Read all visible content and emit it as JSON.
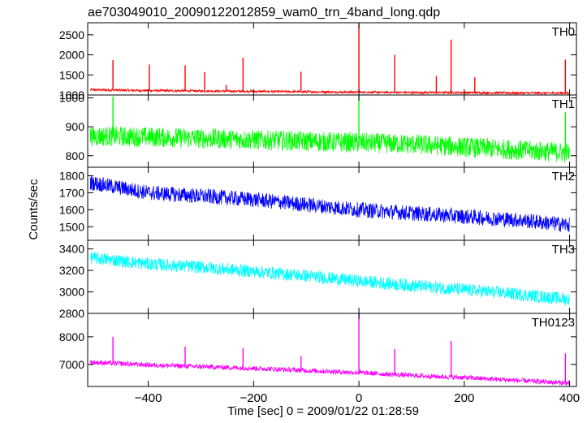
{
  "title": "ae703049010_20090122012859_wam0_trn_4band_long.qdp",
  "ylabel": "Counts/sec",
  "xlabel": "Time [sec] 0 = 2009/01/22 01:28:59",
  "x_ticks": [
    -400,
    -200,
    0,
    200,
    400
  ],
  "x_tick_labels": [
    "−400",
    "−200",
    "0",
    "200",
    "400"
  ],
  "chart_data": [
    {
      "type": "line",
      "label": "TH0",
      "color": "#ff0000",
      "xlim": [
        -515,
        413
      ],
      "ylim": [
        1000,
        2800
      ],
      "ticks": [
        1000,
        1500,
        2000,
        2500
      ],
      "x": [
        -510,
        -400,
        -300,
        -200,
        -100,
        0,
        100,
        200,
        300,
        400
      ],
      "y": [
        1130,
        1110,
        1100,
        1090,
        1080,
        1070,
        1060,
        1060,
        1050,
        1050
      ],
      "noise": 30,
      "spikes": [
        {
          "x": -467,
          "y": 1870
        },
        {
          "x": -398,
          "y": 1760
        },
        {
          "x": -330,
          "y": 1740
        },
        {
          "x": -293,
          "y": 1570
        },
        {
          "x": -252,
          "y": 1250
        },
        {
          "x": -220,
          "y": 1930
        },
        {
          "x": -110,
          "y": 1580
        },
        {
          "x": 0,
          "y": 2780
        },
        {
          "x": 68,
          "y": 2000
        },
        {
          "x": 147,
          "y": 1470
        },
        {
          "x": 175,
          "y": 2380
        },
        {
          "x": 220,
          "y": 1440
        },
        {
          "x": 392,
          "y": 1880
        }
      ]
    },
    {
      "type": "line",
      "label": "TH1",
      "color": "#00ff00",
      "xlim": [
        -515,
        413
      ],
      "ylim": [
        760,
        1010
      ],
      "ticks": [
        800,
        900,
        1000
      ],
      "x": [
        -510,
        -400,
        -300,
        -200,
        -100,
        0,
        100,
        200,
        300,
        400
      ],
      "y": [
        868,
        865,
        860,
        855,
        850,
        845,
        840,
        830,
        820,
        810
      ],
      "noise": 35,
      "spikes": [
        {
          "x": -467,
          "y": 1005
        },
        {
          "x": 0,
          "y": 1010
        },
        {
          "x": 392,
          "y": 950
        }
      ]
    },
    {
      "type": "line",
      "label": "TH2",
      "color": "#0000ff",
      "xlim": [
        -515,
        413
      ],
      "ylim": [
        1420,
        1850
      ],
      "ticks": [
        1500,
        1600,
        1700,
        1800
      ],
      "x": [
        -510,
        -400,
        -300,
        -200,
        -100,
        0,
        100,
        200,
        300,
        400
      ],
      "y": [
        1760,
        1700,
        1680,
        1660,
        1630,
        1600,
        1580,
        1560,
        1540,
        1510
      ],
      "noise": 45
    },
    {
      "type": "line",
      "label": "TH3",
      "color": "#00ffff",
      "xlim": [
        -515,
        413
      ],
      "ylim": [
        2800,
        3480
      ],
      "ticks": [
        2800,
        3000,
        3200,
        3400
      ],
      "x": [
        -510,
        -400,
        -300,
        -200,
        -100,
        0,
        100,
        200,
        300,
        400
      ],
      "y": [
        3320,
        3260,
        3230,
        3190,
        3150,
        3100,
        3060,
        3020,
        2980,
        2930
      ],
      "noise": 60
    },
    {
      "type": "line",
      "label": "TH0123",
      "color": "#ff00ff",
      "xlim": [
        -515,
        413
      ],
      "ylim": [
        6200,
        8850
      ],
      "ticks": [
        7000,
        8000
      ],
      "x": [
        -510,
        -400,
        -300,
        -200,
        -100,
        0,
        100,
        200,
        300,
        400
      ],
      "y": [
        7080,
        6980,
        6920,
        6860,
        6780,
        6700,
        6600,
        6520,
        6420,
        6320
      ],
      "noise": 90,
      "spikes": [
        {
          "x": -467,
          "y": 8000
        },
        {
          "x": -330,
          "y": 7650
        },
        {
          "x": -220,
          "y": 7600
        },
        {
          "x": -110,
          "y": 7300
        },
        {
          "x": 0,
          "y": 8850
        },
        {
          "x": 68,
          "y": 7560
        },
        {
          "x": 175,
          "y": 7850
        },
        {
          "x": 392,
          "y": 7400
        }
      ]
    }
  ]
}
